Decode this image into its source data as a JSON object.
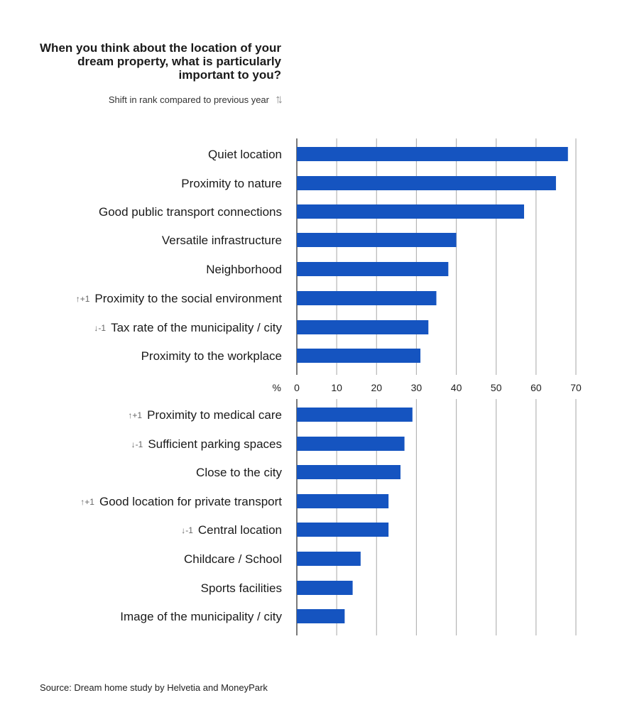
{
  "chart_data": [
    {
      "type": "bar",
      "title": "When you think about the location of your dream property, what is particularly important to you?",
      "legend": "Shift in rank compared to previous year",
      "xlabel": "%",
      "xlim": [
        0,
        70
      ],
      "xticks": [
        "0",
        "10",
        "20",
        "30",
        "40",
        "50",
        "60",
        "70"
      ],
      "grid": true,
      "color": "#1554c0",
      "categories": [
        "Quiet location",
        "Proximity to nature",
        "Good public transport connections",
        "Versatile infrastructure",
        "Neighborhood",
        "Proximity to the social environment",
        "Tax rate of the municipality / city",
        "Proximity to the workplace"
      ],
      "values": [
        68,
        65,
        57,
        40,
        38,
        35,
        33,
        31
      ],
      "rank_shift": [
        "",
        "",
        "",
        "",
        "",
        "↑+1",
        "↓-1",
        ""
      ]
    },
    {
      "type": "bar",
      "xlim": [
        0,
        70
      ],
      "grid": true,
      "color": "#1554c0",
      "categories": [
        "Proximity to medical care",
        "Sufficient parking spaces",
        "Close to the city",
        "Good location for private transport",
        "Central location",
        "Childcare / School",
        "Sports facilities",
        "Image of the municipality / city"
      ],
      "values": [
        29,
        27,
        26,
        23,
        23,
        16,
        14,
        12
      ],
      "rank_shift": [
        "↑+1",
        "↓-1",
        "",
        "↑+1",
        "↓-1",
        "",
        "",
        ""
      ]
    }
  ],
  "source": "Source: Dream home study by Helvetia and MoneyPark",
  "legend_icon": "updown-arrows-icon"
}
